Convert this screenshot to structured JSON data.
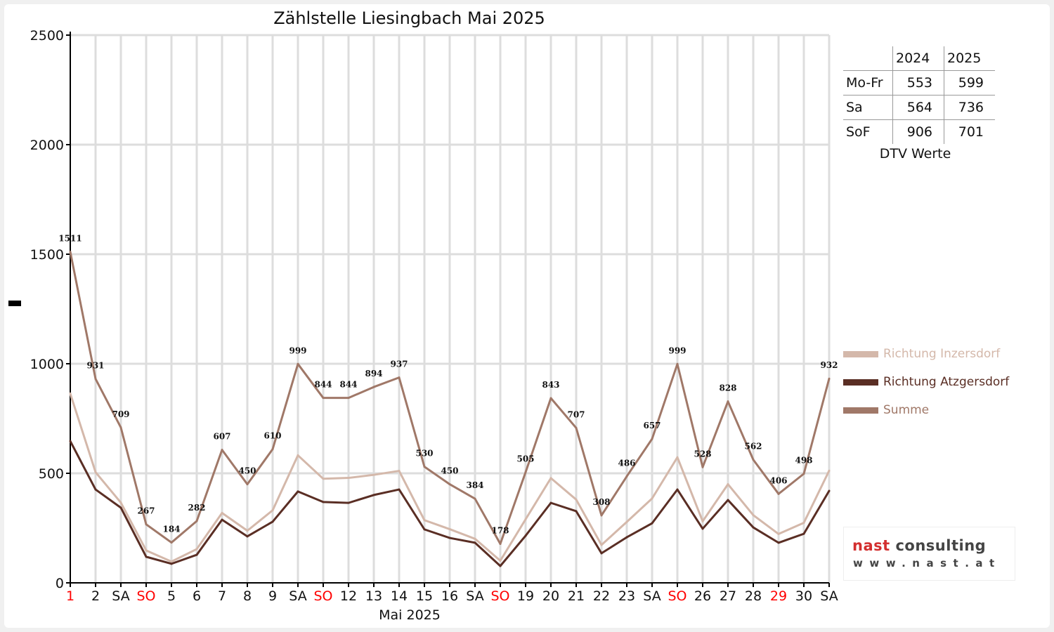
{
  "chart_data": {
    "type": "line",
    "title": "Zählstelle Liesingbach Mai 2025",
    "xlabel": "Mai 2025",
    "ylabel": "",
    "ylim": [
      0,
      2500
    ],
    "yticks": [
      0,
      500,
      1000,
      1500,
      2000,
      2500
    ],
    "grid": true,
    "legend_position": "right",
    "categories": [
      "1",
      "2",
      "SA",
      "SO",
      "5",
      "6",
      "7",
      "8",
      "9",
      "SA",
      "SO",
      "12",
      "13",
      "14",
      "15",
      "16",
      "SA",
      "SO",
      "19",
      "20",
      "21",
      "22",
      "23",
      "SA",
      "SO",
      "26",
      "27",
      "28",
      "29",
      "30",
      "SA"
    ],
    "red_categories": [
      0,
      3,
      10,
      17,
      24,
      28
    ],
    "series": [
      {
        "name": "Richtung Inzersdorf",
        "color": "#d4b8aa",
        "values": [
          864,
          505,
          366,
          148,
          97,
          154,
          319,
          238,
          331,
          582,
          475,
          479,
          493,
          511,
          286,
          245,
          201,
          101,
          290,
          478,
          380,
          173,
          278,
          385,
          573,
          281,
          450,
          309,
          223,
          274,
          512
        ]
      },
      {
        "name": "Richtung Atzgersdorf",
        "color": "#5a2e24",
        "values": [
          647,
          426,
          343,
          119,
          87,
          128,
          288,
          212,
          279,
          417,
          369,
          365,
          401,
          426,
          244,
          205,
          183,
          77,
          215,
          365,
          327,
          135,
          208,
          272,
          426,
          247,
          378,
          253,
          183,
          224,
          420
        ]
      },
      {
        "name": "Summe",
        "color": "#a07868",
        "labeled": true,
        "values": [
          1511,
          931,
          709,
          267,
          184,
          282,
          607,
          450,
          610,
          999,
          844,
          844,
          894,
          937,
          530,
          450,
          384,
          178,
          505,
          843,
          707,
          308,
          486,
          657,
          999,
          528,
          828,
          562,
          406,
          498,
          932
        ]
      }
    ]
  },
  "dtv_table": {
    "headers": [
      "",
      "2024",
      "2025"
    ],
    "rows": [
      [
        "Mo-Fr",
        "553",
        "599"
      ],
      [
        "Sa",
        "564",
        "736"
      ],
      [
        "SoF",
        "906",
        "701"
      ]
    ],
    "caption": "DTV Werte"
  },
  "logo": {
    "brand_red": "nast",
    "brand_gray": "consulting",
    "url": "www.nast.at"
  },
  "colors": {
    "red_label": "#ff0000",
    "grid": "#dddddd"
  }
}
